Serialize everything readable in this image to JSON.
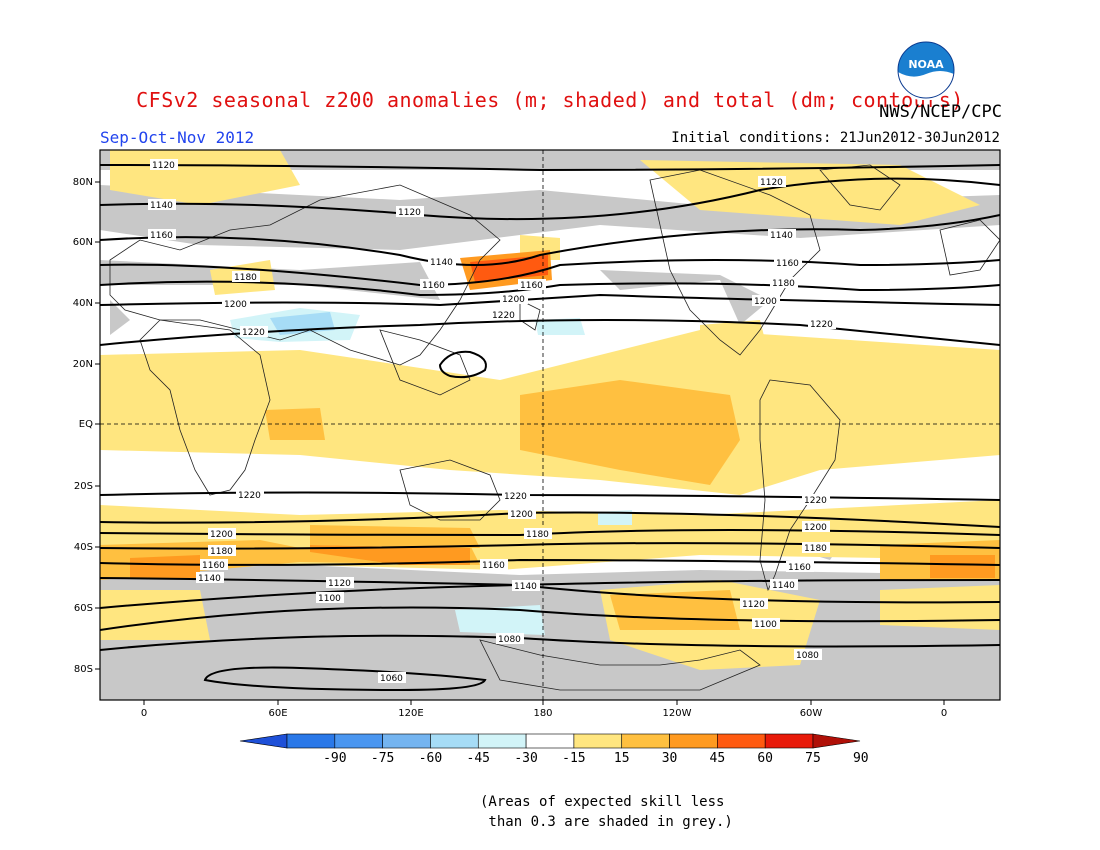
{
  "header": {
    "title": "CFSv2 seasonal z200 anomalies (m; shaded) and total (dm; contours)",
    "agency": "NWS/NCEP/CPC",
    "season": "Sep-Oct-Nov 2012",
    "initial_conditions": "Initial conditions: 21Jun2012-30Jun2012",
    "logo_text": "NOAA"
  },
  "axes": {
    "lat_labels": [
      "80N",
      "60N",
      "40N",
      "20N",
      "EQ",
      "20S",
      "40S",
      "60S",
      "80S"
    ],
    "lon_labels": [
      "0",
      "60E",
      "120E",
      "180",
      "120W",
      "60W",
      "0"
    ]
  },
  "colorbar": {
    "ticks": [
      "-90",
      "-75",
      "-60",
      "-45",
      "-30",
      "-15",
      "15",
      "30",
      "45",
      "60",
      "75",
      "90"
    ],
    "colors": [
      "#1e50d8",
      "#2a78e8",
      "#4a96f0",
      "#74b4f0",
      "#a6dcf6",
      "#d2f4f8",
      "#ffffff",
      "#ffe680",
      "#ffc040",
      "#ff9a20",
      "#ff5a10",
      "#e81a0a",
      "#b01008"
    ]
  },
  "contour_labels": {
    "1120": "1120",
    "1140": "1140",
    "1160": "1160",
    "1180": "1180",
    "1200": "1200",
    "1220": "1220",
    "1100": "1100",
    "1080": "1080",
    "1060": "1060"
  },
  "colors": {
    "skill_grey": "#c8c8c8",
    "land_outline": "#222222",
    "title_red": "#e01010",
    "season_blue": "#2244ee"
  },
  "footnote": "(Areas of expected skill less\n than 0.3 are shaded in grey.)"
}
